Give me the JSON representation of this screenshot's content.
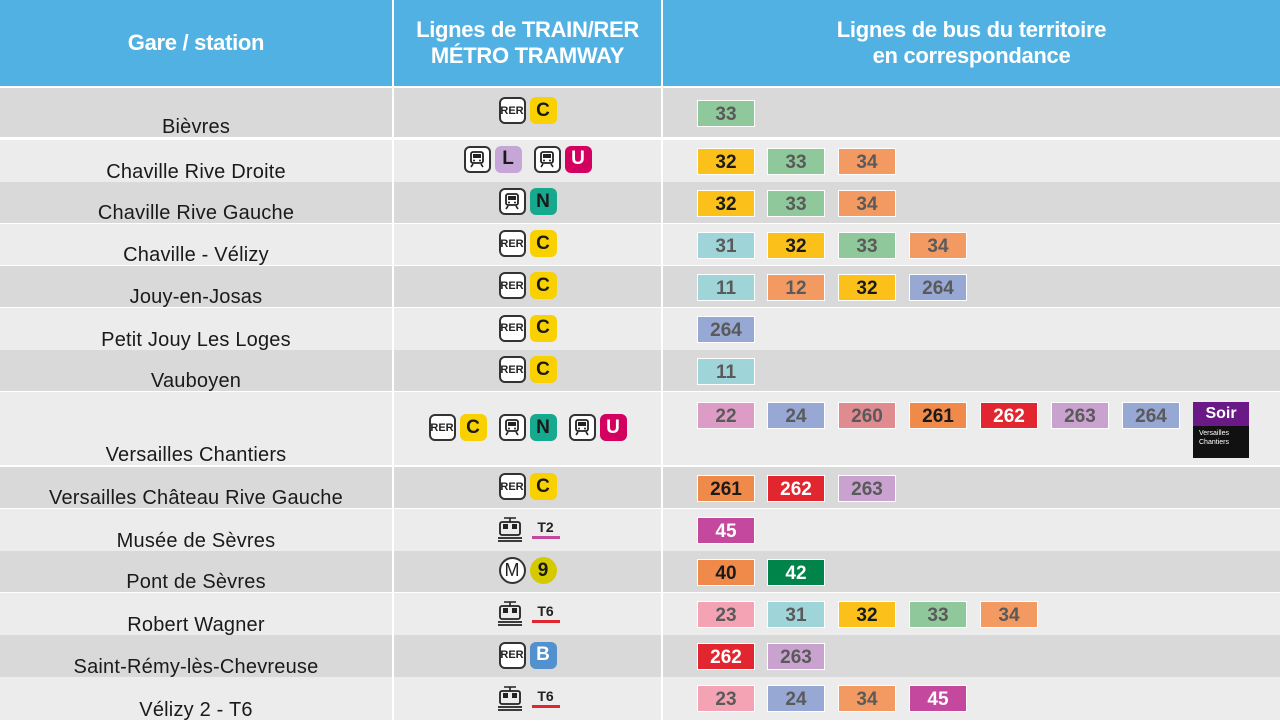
{
  "headers": {
    "station": "Gare / station",
    "lines_1": "Lignes de TRAIN/RER",
    "lines_2": "MÉTRO TRAMWAY",
    "bus_1": "Lignes de bus du territoire",
    "bus_2": "en correspondance"
  },
  "colors": {
    "header_bg": "#52b1e3",
    "row_dark": "#d9d9d9",
    "row_light": "#ececec"
  },
  "rows": [
    {
      "station": "Bièvres",
      "modes": [
        {
          "icon": "rer-icon",
          "icon_label": "RER",
          "line": "C",
          "line_color": "#f9d100"
        }
      ],
      "buses": [
        {
          "n": "33",
          "c": "#8fc89a"
        }
      ]
    },
    {
      "station": "Chaville Rive Droite",
      "modes": [
        {
          "icon": "train-icon",
          "line": "L",
          "line_color": "#c6a6d6"
        },
        {
          "icon": "train-icon",
          "line": "U",
          "line_color": "#d3005f"
        }
      ],
      "buses": [
        {
          "n": "32",
          "c": "#fbc11a"
        },
        {
          "n": "33",
          "c": "#8fc89a"
        },
        {
          "n": "34",
          "c": "#f39a63"
        }
      ]
    },
    {
      "station": "Chaville Rive Gauche",
      "modes": [
        {
          "icon": "train-icon",
          "line": "N",
          "line_color": "#16a98d"
        }
      ],
      "buses": [
        {
          "n": "32",
          "c": "#fbc11a"
        },
        {
          "n": "33",
          "c": "#8fc89a"
        },
        {
          "n": "34",
          "c": "#f39a63"
        }
      ]
    },
    {
      "station": "Chaville - Vélizy",
      "modes": [
        {
          "icon": "rer-icon",
          "icon_label": "RER",
          "line": "C",
          "line_color": "#f9d100"
        }
      ],
      "buses": [
        {
          "n": "31",
          "c": "#9fd5d8"
        },
        {
          "n": "32",
          "c": "#fbc11a"
        },
        {
          "n": "33",
          "c": "#8fc89a"
        },
        {
          "n": "34",
          "c": "#f39a63"
        }
      ]
    },
    {
      "station": "Jouy-en-Josas",
      "modes": [
        {
          "icon": "rer-icon",
          "icon_label": "RER",
          "line": "C",
          "line_color": "#f9d100"
        }
      ],
      "buses": [
        {
          "n": "11",
          "c": "#9fd5d8"
        },
        {
          "n": "12",
          "c": "#f39a63"
        },
        {
          "n": "32",
          "c": "#fbc11a"
        },
        {
          "n": "264",
          "c": "#96a8d3"
        }
      ]
    },
    {
      "station": "Petit Jouy Les Loges",
      "modes": [
        {
          "icon": "rer-icon",
          "icon_label": "RER",
          "line": "C",
          "line_color": "#f9d100"
        }
      ],
      "buses": [
        {
          "n": "264",
          "c": "#96a8d3"
        }
      ]
    },
    {
      "station": "Vauboyen",
      "modes": [
        {
          "icon": "rer-icon",
          "icon_label": "RER",
          "line": "C",
          "line_color": "#f9d100"
        }
      ],
      "buses": [
        {
          "n": "11",
          "c": "#9fd5d8"
        }
      ]
    },
    {
      "station": "Versailles Chantiers",
      "modes": [
        {
          "icon": "rer-icon",
          "icon_label": "RER",
          "line": "C",
          "line_color": "#f9d100"
        },
        {
          "icon": "train-icon",
          "line": "N",
          "line_color": "#16a98d"
        },
        {
          "icon": "train-icon",
          "line": "U",
          "line_color": "#d3005f"
        }
      ],
      "buses": [
        {
          "n": "22",
          "c": "#dc9cc6"
        },
        {
          "n": "24",
          "c": "#96a8d3"
        },
        {
          "n": "260",
          "c": "#e08b8f"
        },
        {
          "n": "261",
          "c": "#f08a4b"
        },
        {
          "n": "262",
          "c": "#e2262f"
        },
        {
          "n": "263",
          "c": "#c9a2cf"
        },
        {
          "n": "264",
          "c": "#96a8d3"
        }
      ],
      "soir": {
        "label": "Soir",
        "sub1": "Versailles",
        "sub2": "Chantiers"
      }
    },
    {
      "station": "Versailles Château Rive Gauche",
      "modes": [
        {
          "icon": "rer-icon",
          "icon_label": "RER",
          "line": "C",
          "line_color": "#f9d100"
        }
      ],
      "buses": [
        {
          "n": "261",
          "c": "#f08a4b"
        },
        {
          "n": "262",
          "c": "#e2262f"
        },
        {
          "n": "263",
          "c": "#c9a2cf"
        }
      ]
    },
    {
      "station": "Musée de Sèvres",
      "modes": [
        {
          "icon": "tram-icon",
          "line": "T2",
          "line_color": "#c4499e",
          "type": "tram"
        }
      ],
      "buses": [
        {
          "n": "45",
          "c": "#c4499e"
        }
      ]
    },
    {
      "station": "Pont de Sèvres",
      "modes": [
        {
          "icon": "metro-icon",
          "icon_label": "M",
          "line": "9",
          "line_color": "#d5c900",
          "type": "metro"
        }
      ],
      "buses": [
        {
          "n": "40",
          "c": "#f08a4b"
        },
        {
          "n": "42",
          "c": "#00844a"
        }
      ]
    },
    {
      "station": "Robert Wagner",
      "modes": [
        {
          "icon": "tram-icon",
          "line": "T6",
          "line_color": "#e2262f",
          "type": "tram"
        }
      ],
      "buses": [
        {
          "n": "23",
          "c": "#f3a3b3"
        },
        {
          "n": "31",
          "c": "#9fd5d8"
        },
        {
          "n": "32",
          "c": "#fbc11a"
        },
        {
          "n": "33",
          "c": "#8fc89a"
        },
        {
          "n": "34",
          "c": "#f39a63"
        }
      ]
    },
    {
      "station": "Saint-Rémy-lès-Chevreuse",
      "modes": [
        {
          "icon": "rer-icon",
          "icon_label": "RER",
          "line": "B",
          "line_color": "#5291ce"
        }
      ],
      "buses": [
        {
          "n": "262",
          "c": "#e2262f"
        },
        {
          "n": "263",
          "c": "#c9a2cf"
        }
      ]
    },
    {
      "station": "Vélizy 2 - T6",
      "modes": [
        {
          "icon": "tram-icon",
          "line": "T6",
          "line_color": "#e2262f",
          "type": "tram"
        }
      ],
      "buses": [
        {
          "n": "23",
          "c": "#f3a3b3"
        },
        {
          "n": "24",
          "c": "#96a8d3"
        },
        {
          "n": "34",
          "c": "#f39a63"
        },
        {
          "n": "45",
          "c": "#c4499e"
        }
      ]
    }
  ]
}
